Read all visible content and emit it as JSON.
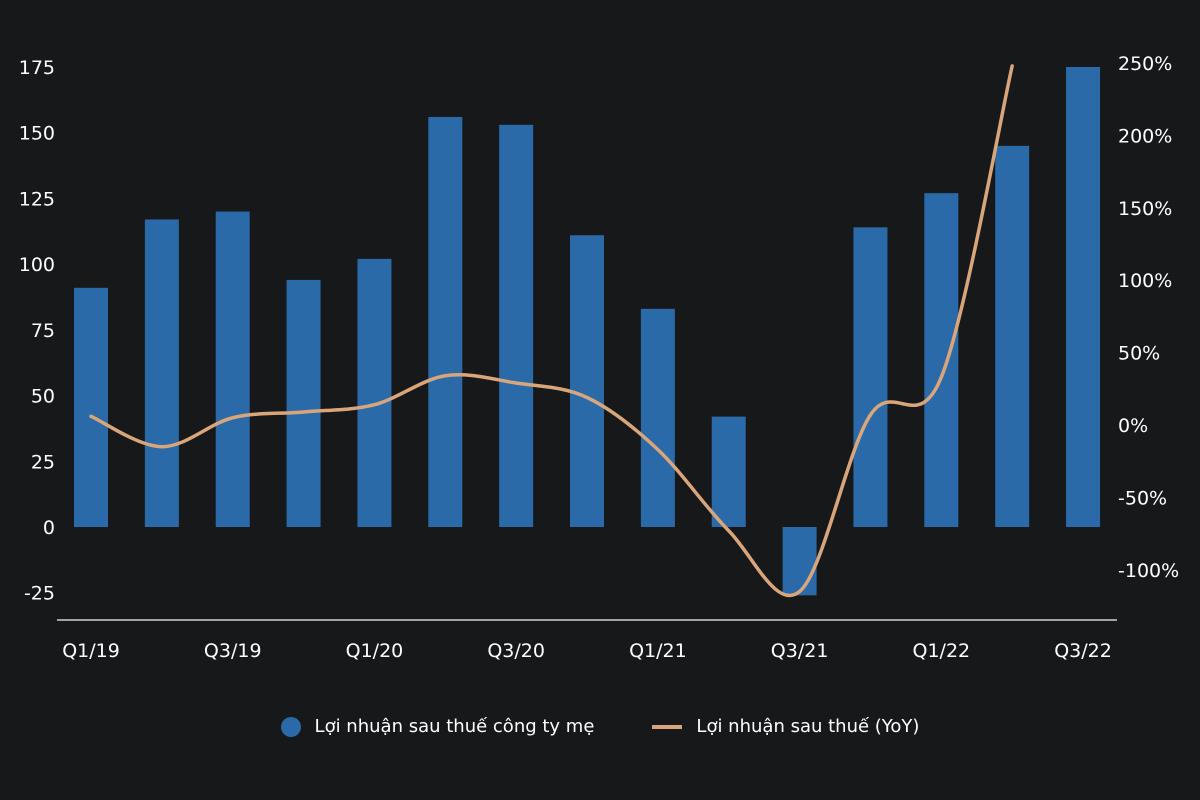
{
  "chart_data": {
    "type": "bar+line",
    "categories": [
      "Q1/19",
      "Q2/19",
      "Q3/19",
      "Q4/19",
      "Q1/20",
      "Q2/20",
      "Q3/20",
      "Q4/20",
      "Q1/21",
      "Q2/21",
      "Q3/21",
      "Q4/21",
      "Q1/22",
      "Q2/22",
      "Q3/22"
    ],
    "x_tick_labels": [
      "Q1/19",
      "Q3/19",
      "Q1/20",
      "Q3/20",
      "Q1/21",
      "Q3/21",
      "Q1/22",
      "Q3/22"
    ],
    "series": [
      {
        "name": "Lợi nhuận sau thuế công ty mẹ",
        "type": "bar",
        "axis": "left",
        "color": "#2b6aa8",
        "values": [
          91,
          117,
          120,
          94,
          102,
          156,
          153,
          111,
          83,
          42,
          -26,
          114,
          127,
          145,
          175
        ]
      },
      {
        "name": "Lợi nhuận sau thuế (YoY)",
        "type": "line",
        "axis": "right",
        "color": "#d9a57a",
        "values": [
          6,
          -15,
          5,
          9,
          14,
          34,
          29,
          19,
          -17,
          -73,
          -115,
          7,
          33,
          248,
          null
        ]
      }
    ],
    "left_axis": {
      "ylim": [
        -25,
        175
      ],
      "ticks": [
        "-25",
        "0",
        "25",
        "50",
        "75",
        "100",
        "125",
        "150",
        "175"
      ]
    },
    "right_axis": {
      "ylim": [
        -100,
        250
      ],
      "ticks": [
        "-100%",
        "-50%",
        "0%",
        "50%",
        "100%",
        "150%",
        "200%",
        "250%"
      ]
    },
    "legend_position": "bottom"
  }
}
